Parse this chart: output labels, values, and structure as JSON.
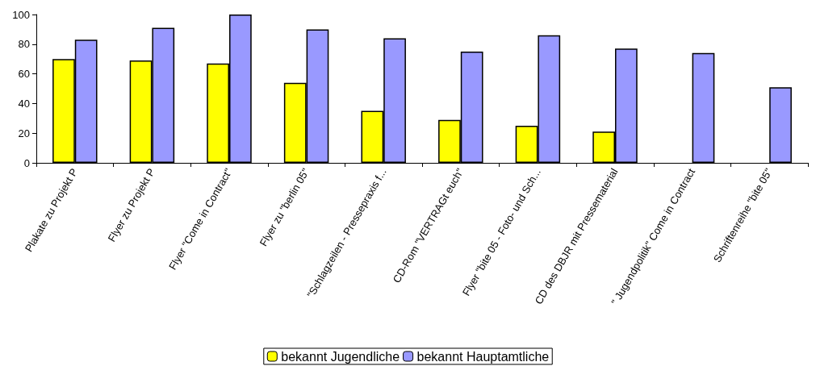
{
  "chart_data": {
    "type": "bar",
    "categories": [
      "Plakate zu Projekt P",
      "Flyer zu Projekt P",
      "Flyer \"Come in Contract\"",
      "Flyer zu \"berlin 05\"",
      "\"Schlagzeilen - Pressepraxis f...",
      "CD-Rom \"VERTRAGt euch\"",
      "Flyer \"bite 05 - Foto- und Sch...",
      "CD des DBJR mit Pressematerial",
      "\" Jugendpolitik\" Come in Contract",
      "Schriftenreihe \"bite 05\""
    ],
    "series": [
      {
        "name": "bekannt Jugendliche",
        "color": "#ffff00",
        "values": [
          70,
          69,
          67,
          54,
          35,
          29,
          25,
          21,
          null,
          null
        ]
      },
      {
        "name": "bekannt Hauptamtliche",
        "color": "#9999ff",
        "values": [
          83,
          91,
          100,
          90,
          84,
          75,
          86,
          77,
          74,
          51
        ]
      }
    ],
    "ylim": [
      0,
      100
    ],
    "yticks": [
      0,
      20,
      40,
      60,
      80,
      100
    ],
    "grid": false,
    "legend": "bottom"
  }
}
